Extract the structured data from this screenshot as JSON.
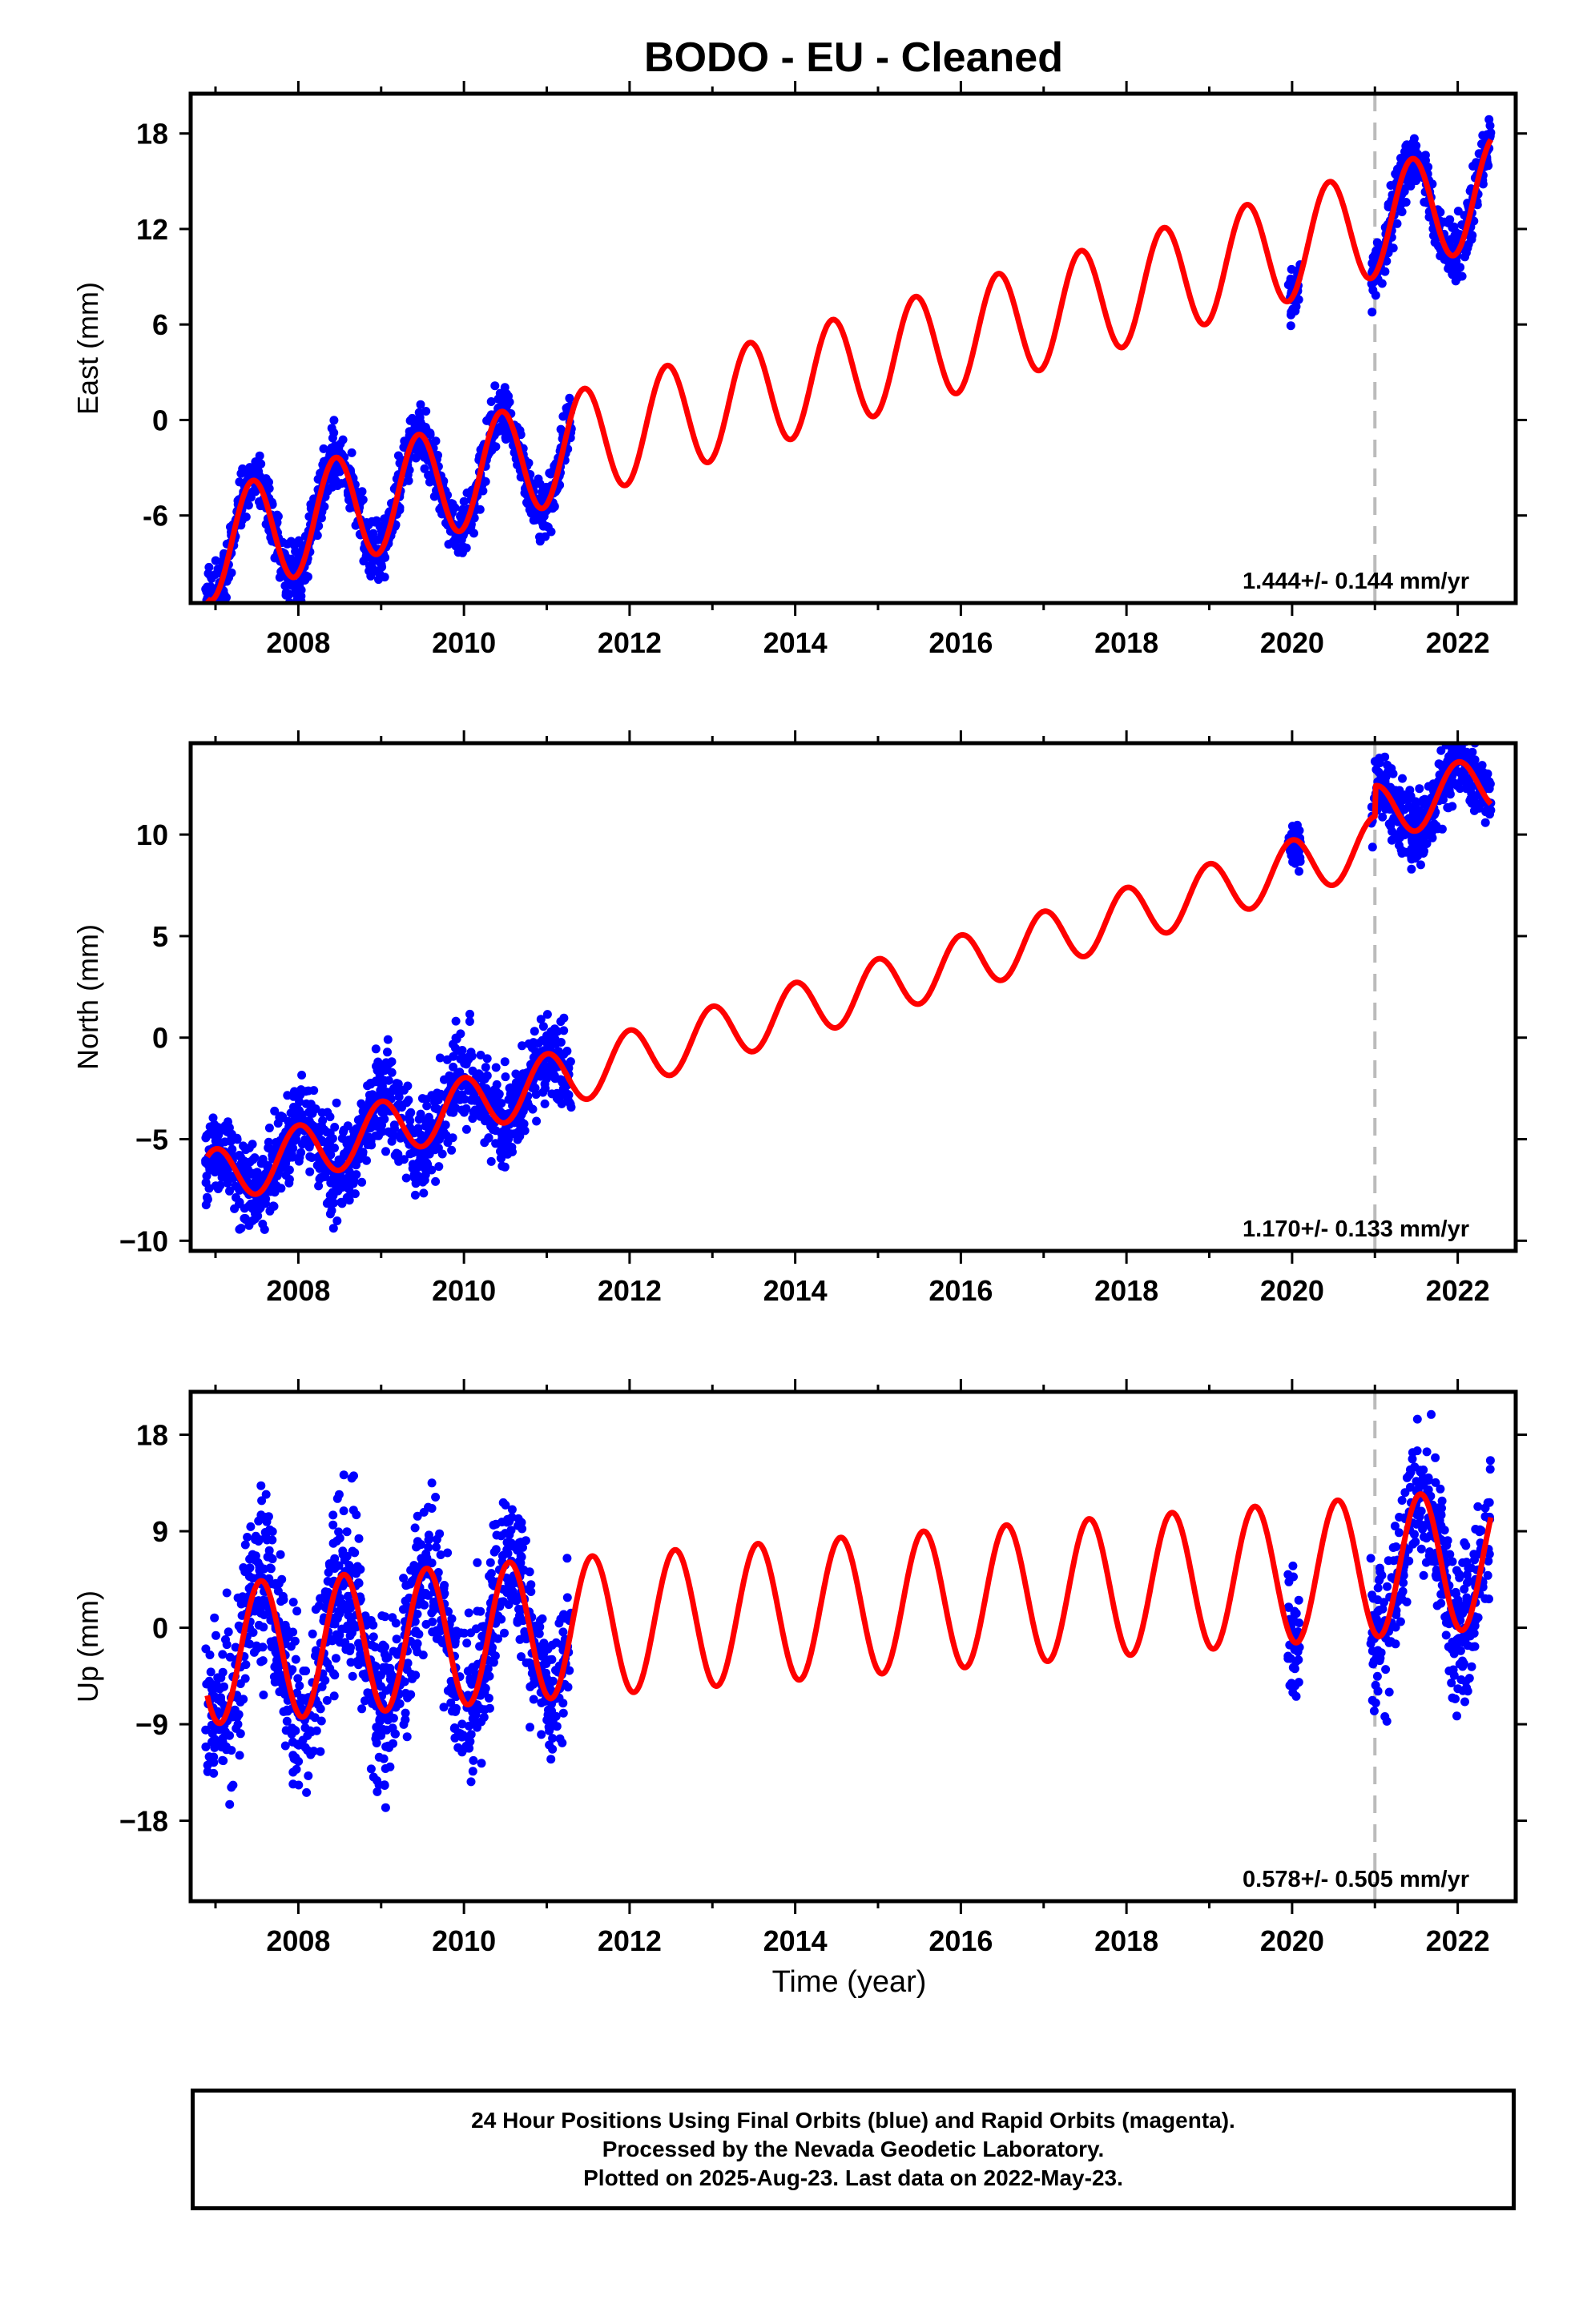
{
  "title": "BODO  - EU - Cleaned",
  "x_axis_label": "Time (year)",
  "footer": {
    "line1": "24 Hour Positions Using Final Orbits (blue) and Rapid Orbits (magenta).",
    "line2": "Processed by the Nevada Geodetic Laboratory.",
    "line3": "Plotted on 2025-Aug-23. Last data on 2022-May-23."
  },
  "colors": {
    "data_points": "#0000ff",
    "model_fit": "#ff0000",
    "event_line": "#bbbbbb",
    "axes": "#000000"
  },
  "chart_data": [
    {
      "type": "scatter",
      "name": "east",
      "ylabel": "East (mm)",
      "xlim": [
        2006.7,
        2022.7
      ],
      "ylim": [
        -11.5,
        20.5
      ],
      "yticks": [
        -6,
        0,
        6,
        12,
        18
      ],
      "ytick_labels": [
        "-6",
        "0",
        "6",
        "12",
        "18"
      ],
      "xticks": [
        2008,
        2010,
        2012,
        2014,
        2016,
        2018,
        2020,
        2022
      ],
      "rate_text": "1.444+/- 0.144 mm/yr",
      "event_line_x": 2021.0,
      "model": {
        "rate": 1.444,
        "ref_year": 2006.9,
        "ref_value": -8.0,
        "amplitude": 3.4,
        "phase_year": 2007.45,
        "offset_2021": 0
      },
      "data_segments": [
        {
          "x_range": [
            2006.88,
            2011.3
          ],
          "spread": 1.3
        },
        {
          "x_range": [
            2019.95,
            2020.1
          ],
          "spread": 0.9
        },
        {
          "x_range": [
            2020.95,
            2022.4
          ],
          "spread": 1.3
        }
      ]
    },
    {
      "type": "scatter",
      "name": "north",
      "ylabel": "North (mm)",
      "xlim": [
        2006.7,
        2022.7
      ],
      "ylim": [
        -10.5,
        14.5
      ],
      "yticks": [
        -10,
        -5,
        0,
        5,
        10
      ],
      "ytick_labels": [
        "−10",
        "−5",
        "0",
        "5",
        "10"
      ],
      "xticks": [
        2008,
        2010,
        2012,
        2014,
        2016,
        2018,
        2020,
        2022
      ],
      "rate_text": "1.170+/- 0.133 mm/yr",
      "event_line_x": 2021.0,
      "model": {
        "rate": 1.17,
        "ref_year": 2006.9,
        "ref_value": -7.0,
        "amplitude": 1.4,
        "phase_year": 2008.0,
        "offset_2021": 1.5
      },
      "data_segments": [
        {
          "x_range": [
            2006.88,
            2011.3
          ],
          "spread": 1.6
        },
        {
          "x_range": [
            2019.95,
            2020.1
          ],
          "spread": 0.9
        },
        {
          "x_range": [
            2020.95,
            2022.4
          ],
          "spread": 1.2
        }
      ]
    },
    {
      "type": "scatter",
      "name": "up",
      "ylabel": "Up (mm)",
      "xlim": [
        2006.7,
        2022.7
      ],
      "ylim": [
        -25.5,
        22
      ],
      "yticks": [
        -18,
        -9,
        0,
        9,
        18
      ],
      "ytick_labels": [
        "−18",
        "−9",
        "0",
        "9",
        "18"
      ],
      "xticks": [
        2008,
        2010,
        2012,
        2014,
        2016,
        2018,
        2020,
        2022
      ],
      "rate_text": "0.578+/- 0.505 mm/yr",
      "event_line_x": 2021.0,
      "model": {
        "rate": 0.578,
        "ref_year": 2006.9,
        "ref_value": -2.5,
        "amplitude": 6.5,
        "phase_year": 2007.55,
        "offset_2021": 0
      },
      "data_segments": [
        {
          "x_range": [
            2006.88,
            2011.3
          ],
          "spread": 5.5
        },
        {
          "x_range": [
            2019.95,
            2020.1
          ],
          "spread": 5.0
        },
        {
          "x_range": [
            2020.95,
            2022.4
          ],
          "spread": 5.0
        }
      ]
    }
  ]
}
